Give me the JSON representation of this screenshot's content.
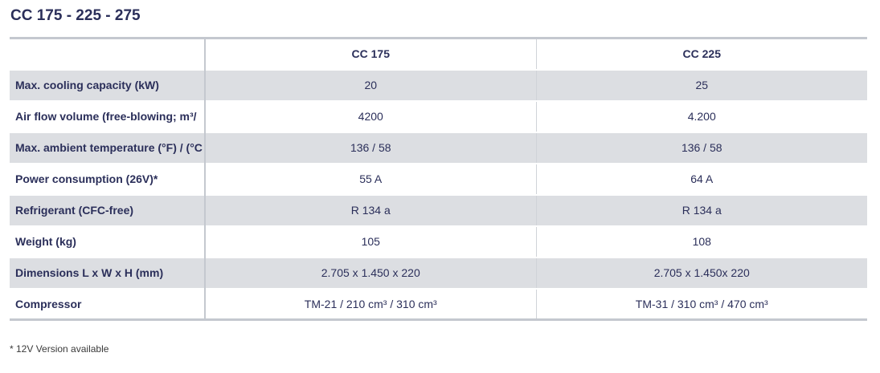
{
  "title": "CC 175 - 225 - 275",
  "table": {
    "columns": [
      "",
      "CC 175",
      "CC 225"
    ],
    "rows": [
      {
        "label": "Max. cooling capacity (kW)",
        "values": [
          "20",
          "25"
        ]
      },
      {
        "label": "Air flow volume (free-blowing; m³/",
        "values": [
          "4200",
          "4.200"
        ]
      },
      {
        "label": "Max. ambient temperature (°F) / (°C",
        "values": [
          "136 / 58",
          "136 / 58"
        ]
      },
      {
        "label": "Power consumption (26V)*",
        "values": [
          "55 A",
          "64 A"
        ]
      },
      {
        "label": "Refrigerant (CFC-free)",
        "values": [
          "R 134 a",
          "R 134 a"
        ]
      },
      {
        "label": "Weight (kg)",
        "values": [
          "105",
          "108"
        ]
      },
      {
        "label": "Dimensions L x W x H (mm)",
        "values": [
          "2.705 x 1.450 x 220",
          "2.705 x 1.450x 220"
        ]
      },
      {
        "label": "Compressor",
        "values": [
          "TM-21 / 210 cm³ / 310 cm³",
          "TM-31 / 310 cm³ / 470 cm³"
        ]
      }
    ]
  },
  "footnote": "* 12V Version available"
}
